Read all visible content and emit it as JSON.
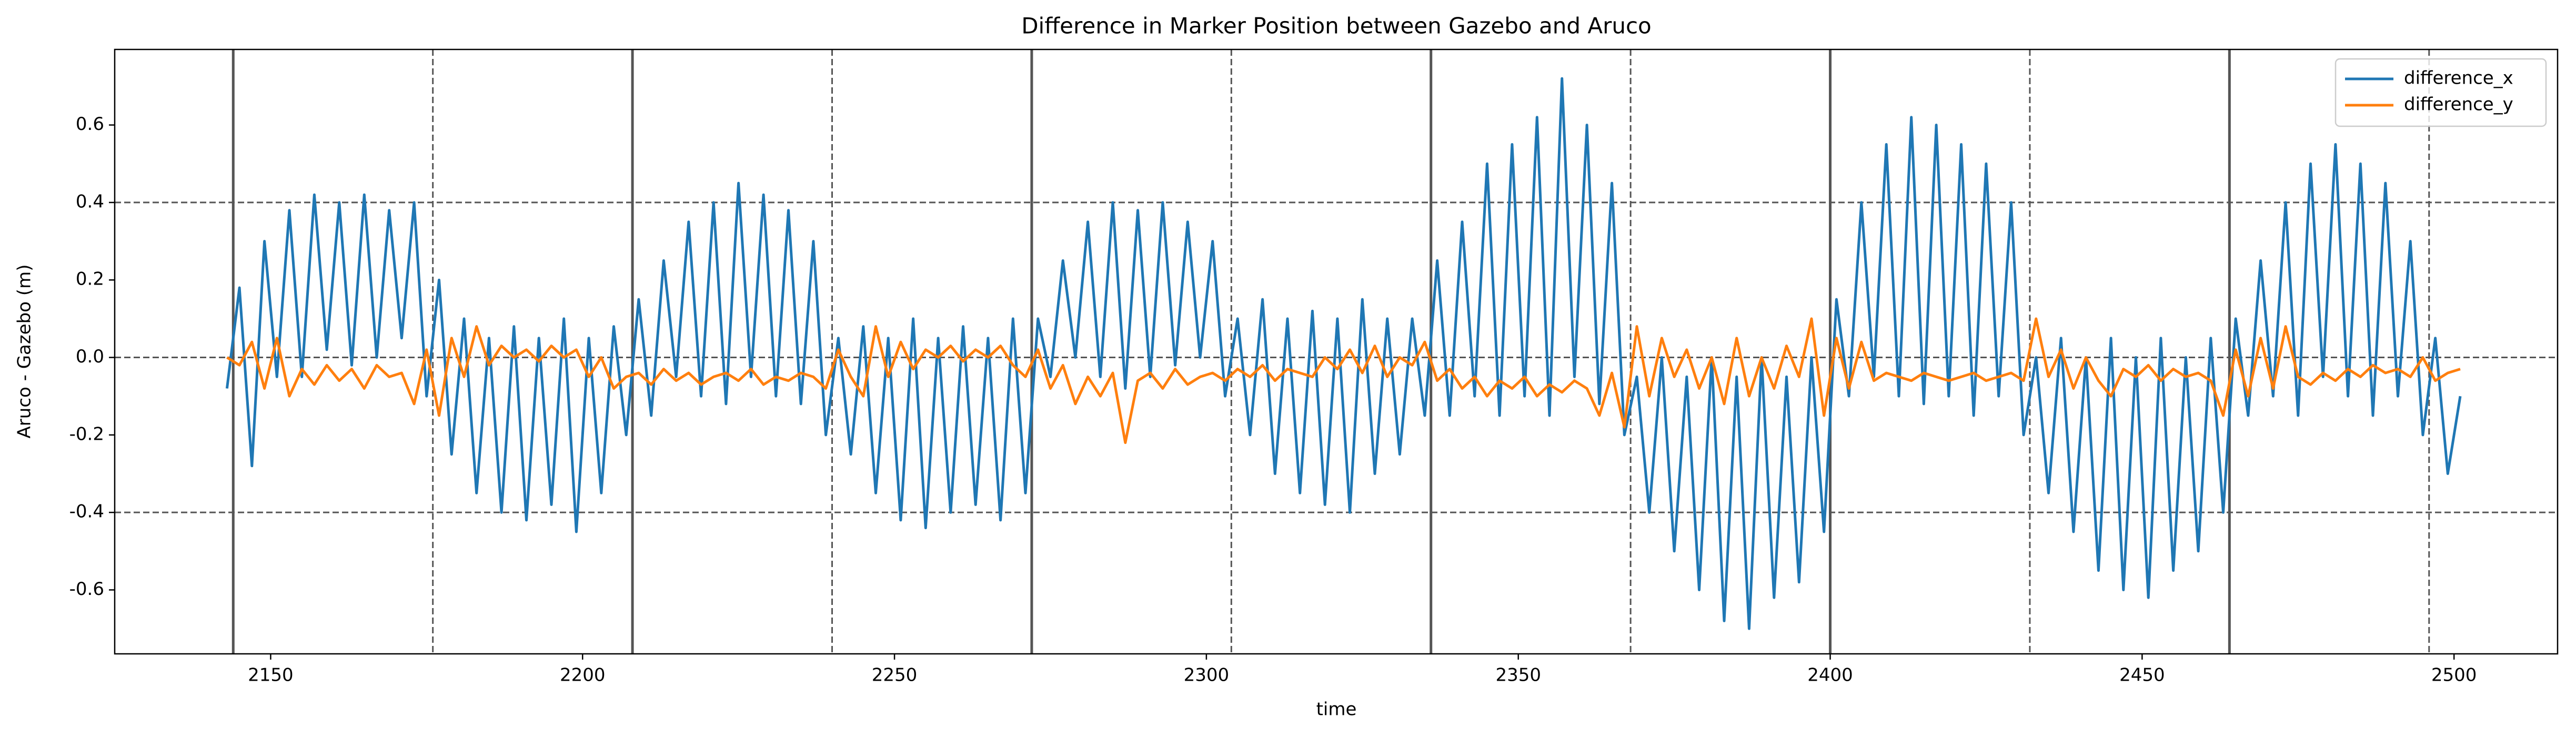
{
  "chart_data": {
    "type": "line",
    "title": "Difference in Marker Position between Gazebo and Aruco",
    "xlabel": "time",
    "ylabel": "Aruco - Gazebo (m)",
    "xlim": [
      2125,
      2516.6
    ],
    "ylim": [
      -0.765,
      0.795
    ],
    "xticks": [
      2150,
      2200,
      2250,
      2300,
      2350,
      2400,
      2450,
      2500
    ],
    "yticks": [
      -0.6,
      -0.4,
      -0.2,
      {
        "value": 0,
        "label": "0.0"
      },
      0.2,
      0.4,
      0.6
    ],
    "vlines_solid": [
      2144,
      2208,
      2272,
      2336,
      2400,
      2464
    ],
    "vlines_dashed": [
      2176,
      2240,
      2304,
      2368,
      2432,
      2496
    ],
    "hlines_dashed": [
      0.4,
      0,
      -0.4
    ],
    "legend": "upper right",
    "x": [
      2143,
      2145,
      2147,
      2149,
      2151,
      2153,
      2155,
      2157,
      2159,
      2161,
      2163,
      2165,
      2167,
      2169,
      2171,
      2173,
      2175,
      2177,
      2179,
      2181,
      2183,
      2185,
      2187,
      2189,
      2191,
      2193,
      2195,
      2197,
      2199,
      2201,
      2203,
      2205,
      2207,
      2209,
      2211,
      2213,
      2215,
      2217,
      2219,
      2221,
      2223,
      2225,
      2227,
      2229,
      2231,
      2233,
      2235,
      2237,
      2239,
      2241,
      2243,
      2245,
      2247,
      2249,
      2251,
      2253,
      2255,
      2257,
      2259,
      2261,
      2263,
      2265,
      2267,
      2269,
      2271,
      2273,
      2275,
      2277,
      2279,
      2281,
      2283,
      2285,
      2287,
      2289,
      2291,
      2293,
      2295,
      2297,
      2299,
      2301,
      2303,
      2305,
      2307,
      2309,
      2311,
      2313,
      2315,
      2317,
      2319,
      2321,
      2323,
      2325,
      2327,
      2329,
      2331,
      2333,
      2335,
      2337,
      2339,
      2341,
      2343,
      2345,
      2347,
      2349,
      2351,
      2353,
      2355,
      2357,
      2359,
      2361,
      2363,
      2365,
      2367,
      2369,
      2371,
      2373,
      2375,
      2377,
      2379,
      2381,
      2383,
      2385,
      2387,
      2389,
      2391,
      2393,
      2395,
      2397,
      2399,
      2401,
      2403,
      2405,
      2407,
      2409,
      2411,
      2413,
      2415,
      2417,
      2419,
      2421,
      2423,
      2425,
      2427,
      2429,
      2431,
      2433,
      2435,
      2437,
      2439,
      2441,
      2443,
      2445,
      2447,
      2449,
      2451,
      2453,
      2455,
      2457,
      2459,
      2461,
      2463,
      2465,
      2467,
      2469,
      2471,
      2473,
      2475,
      2477,
      2479,
      2481,
      2483,
      2485,
      2487,
      2489,
      2491,
      2493,
      2495,
      2497,
      2499,
      2501
    ],
    "series": [
      {
        "name": "difference_x",
        "color": "#1f77b4",
        "values": [
          -0.08,
          0.18,
          -0.28,
          0.3,
          -0.05,
          0.38,
          -0.05,
          0.42,
          0.02,
          0.4,
          -0.02,
          0.42,
          0.0,
          0.38,
          0.05,
          0.4,
          -0.1,
          0.2,
          -0.25,
          0.1,
          -0.35,
          0.05,
          -0.4,
          0.08,
          -0.42,
          0.05,
          -0.38,
          0.1,
          -0.45,
          0.05,
          -0.35,
          0.08,
          -0.2,
          0.15,
          -0.15,
          0.25,
          -0.05,
          0.35,
          -0.1,
          0.4,
          -0.12,
          0.45,
          -0.05,
          0.42,
          -0.1,
          0.38,
          -0.12,
          0.3,
          -0.2,
          0.05,
          -0.25,
          0.08,
          -0.35,
          0.05,
          -0.42,
          0.1,
          -0.44,
          0.05,
          -0.4,
          0.08,
          -0.38,
          0.05,
          -0.42,
          0.1,
          -0.35,
          0.1,
          -0.05,
          0.25,
          0.0,
          0.35,
          -0.05,
          0.4,
          -0.08,
          0.38,
          -0.05,
          0.4,
          -0.02,
          0.35,
          0.0,
          0.3,
          -0.1,
          0.1,
          -0.2,
          0.15,
          -0.3,
          0.1,
          -0.35,
          0.12,
          -0.38,
          0.1,
          -0.4,
          0.15,
          -0.3,
          0.1,
          -0.25,
          0.1,
          -0.15,
          0.25,
          -0.15,
          0.35,
          -0.1,
          0.5,
          -0.15,
          0.55,
          -0.1,
          0.62,
          -0.15,
          0.72,
          -0.05,
          0.6,
          -0.12,
          0.45,
          -0.2,
          -0.05,
          -0.4,
          0.0,
          -0.5,
          -0.05,
          -0.6,
          0.0,
          -0.68,
          -0.05,
          -0.7,
          0.0,
          -0.62,
          -0.05,
          -0.58,
          0.0,
          -0.45,
          0.15,
          -0.1,
          0.4,
          -0.05,
          0.55,
          -0.1,
          0.62,
          -0.12,
          0.6,
          -0.1,
          0.55,
          -0.15,
          0.5,
          -0.1,
          0.4,
          -0.2,
          0.0,
          -0.35,
          0.05,
          -0.45,
          0.0,
          -0.55,
          0.05,
          -0.6,
          0.0,
          -0.62,
          0.05,
          -0.55,
          0.0,
          -0.5,
          0.05,
          -0.4,
          0.1,
          -0.15,
          0.25,
          -0.1,
          0.4,
          -0.15,
          0.5,
          -0.05,
          0.55,
          -0.1,
          0.5,
          -0.15,
          0.45,
          -0.1,
          0.3,
          -0.2,
          0.05,
          -0.3,
          -0.1
        ]
      },
      {
        "name": "difference_y",
        "color": "#ff7f0e",
        "values": [
          0.0,
          -0.02,
          0.04,
          -0.08,
          0.05,
          -0.1,
          -0.03,
          -0.07,
          -0.02,
          -0.06,
          -0.03,
          -0.08,
          -0.02,
          -0.05,
          -0.04,
          -0.12,
          0.02,
          -0.15,
          0.05,
          -0.05,
          0.08,
          -0.02,
          0.03,
          0.0,
          0.02,
          -0.01,
          0.03,
          0.0,
          0.02,
          -0.05,
          0.0,
          -0.08,
          -0.05,
          -0.04,
          -0.07,
          -0.03,
          -0.06,
          -0.04,
          -0.07,
          -0.05,
          -0.04,
          -0.06,
          -0.03,
          -0.07,
          -0.05,
          -0.06,
          -0.04,
          -0.05,
          -0.08,
          0.02,
          -0.05,
          -0.1,
          0.08,
          -0.05,
          0.04,
          -0.03,
          0.02,
          0.0,
          0.03,
          -0.01,
          0.02,
          0.0,
          0.03,
          -0.02,
          -0.05,
          0.02,
          -0.08,
          -0.02,
          -0.12,
          -0.05,
          -0.1,
          -0.04,
          -0.22,
          -0.06,
          -0.04,
          -0.08,
          -0.03,
          -0.07,
          -0.05,
          -0.04,
          -0.06,
          -0.03,
          -0.05,
          -0.02,
          -0.06,
          -0.03,
          -0.04,
          -0.05,
          0.0,
          -0.03,
          0.02,
          -0.04,
          0.03,
          -0.05,
          0.0,
          -0.02,
          0.04,
          -0.06,
          -0.03,
          -0.08,
          -0.05,
          -0.1,
          -0.06,
          -0.08,
          -0.05,
          -0.1,
          -0.07,
          -0.09,
          -0.06,
          -0.08,
          -0.15,
          -0.04,
          -0.18,
          0.08,
          -0.1,
          0.05,
          -0.05,
          0.02,
          -0.08,
          0.0,
          -0.12,
          0.05,
          -0.1,
          0.0,
          -0.08,
          0.03,
          -0.05,
          0.1,
          -0.15,
          0.05,
          -0.08,
          0.04,
          -0.06,
          -0.04,
          -0.05,
          -0.06,
          -0.04,
          -0.05,
          -0.06,
          -0.05,
          -0.04,
          -0.06,
          -0.05,
          -0.04,
          -0.06,
          0.1,
          -0.05,
          0.02,
          -0.08,
          0.0,
          -0.06,
          -0.1,
          -0.03,
          -0.05,
          -0.02,
          -0.06,
          -0.03,
          -0.05,
          -0.04,
          -0.06,
          -0.15,
          0.02,
          -0.1,
          0.05,
          -0.08,
          0.08,
          -0.05,
          -0.07,
          -0.04,
          -0.06,
          -0.03,
          -0.05,
          -0.02,
          -0.04,
          -0.03,
          -0.05,
          0.0,
          -0.06,
          -0.04,
          -0.03
        ]
      }
    ]
  }
}
